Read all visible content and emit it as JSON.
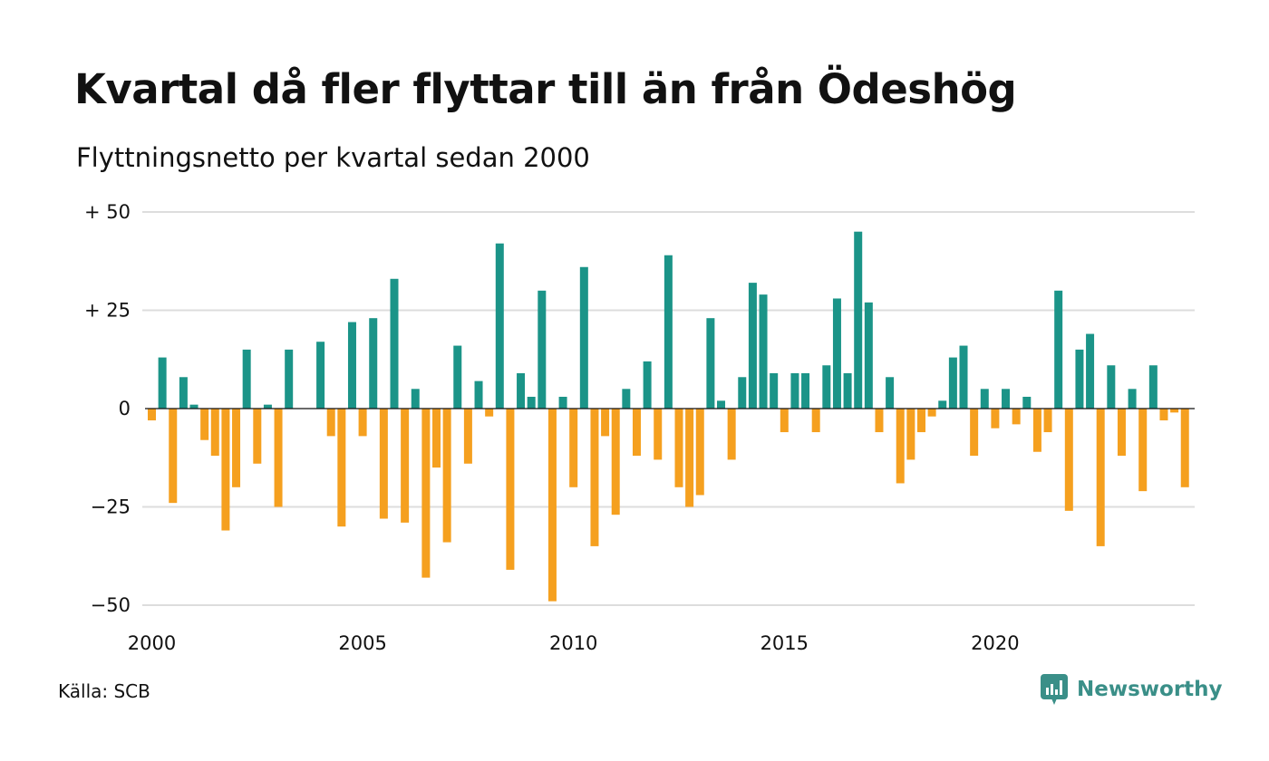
{
  "header": {
    "title": "Kvartal då fler flyttar till än från Ödeshög",
    "subtitle": "Flyttningsnetto per kvartal sedan 2000"
  },
  "footer": {
    "source": "Källa: SCB",
    "brand": "Newsworthy",
    "brand_icon": "chart-bubble-icon"
  },
  "colors": {
    "positive": "#1b9488",
    "negative": "#f5a01f",
    "grid": "#dddddd",
    "brand": "#3a8f88"
  },
  "chart_data": {
    "type": "bar",
    "start": "2000 Q1",
    "values": [
      -3,
      13,
      -24,
      8,
      1,
      -8,
      -12,
      -31,
      -20,
      15,
      -14,
      1,
      -25,
      15,
      0,
      0,
      17,
      -7,
      -30,
      22,
      -7,
      23,
      -28,
      33,
      -29,
      5,
      -43,
      -15,
      -34,
      16,
      -14,
      7,
      -2,
      42,
      -41,
      9,
      3,
      30,
      -49,
      3,
      -20,
      36,
      -35,
      -7,
      -27,
      5,
      -12,
      12,
      -13,
      39,
      -20,
      -25,
      -22,
      23,
      2,
      -13,
      8,
      32,
      29,
      9,
      -6,
      9,
      9,
      -6,
      11,
      28,
      9,
      45,
      27,
      -6,
      8,
      -19,
      -13,
      -6,
      -2,
      2,
      13,
      16,
      -12,
      5,
      -5,
      5,
      -4,
      3,
      -11,
      -6,
      30,
      -26,
      15,
      19,
      -35,
      11,
      -12,
      5,
      -21,
      11,
      -3,
      -1,
      -20
    ],
    "x_ticks": [
      {
        "label": "2000",
        "year": 2000
      },
      {
        "label": "2005",
        "year": 2005
      },
      {
        "label": "2010",
        "year": 2010
      },
      {
        "label": "2015",
        "year": 2015
      },
      {
        "label": "2020",
        "year": 2020
      }
    ],
    "y_ticks": [
      {
        "label": "+ 50",
        "value": 50
      },
      {
        "label": "+ 25",
        "value": 25
      },
      {
        "label": "0",
        "value": 0
      },
      {
        "label": "−25",
        "value": -25
      },
      {
        "label": "−50",
        "value": -50
      }
    ],
    "ylim": [
      -50,
      50
    ],
    "grid": true,
    "legend": "none"
  }
}
